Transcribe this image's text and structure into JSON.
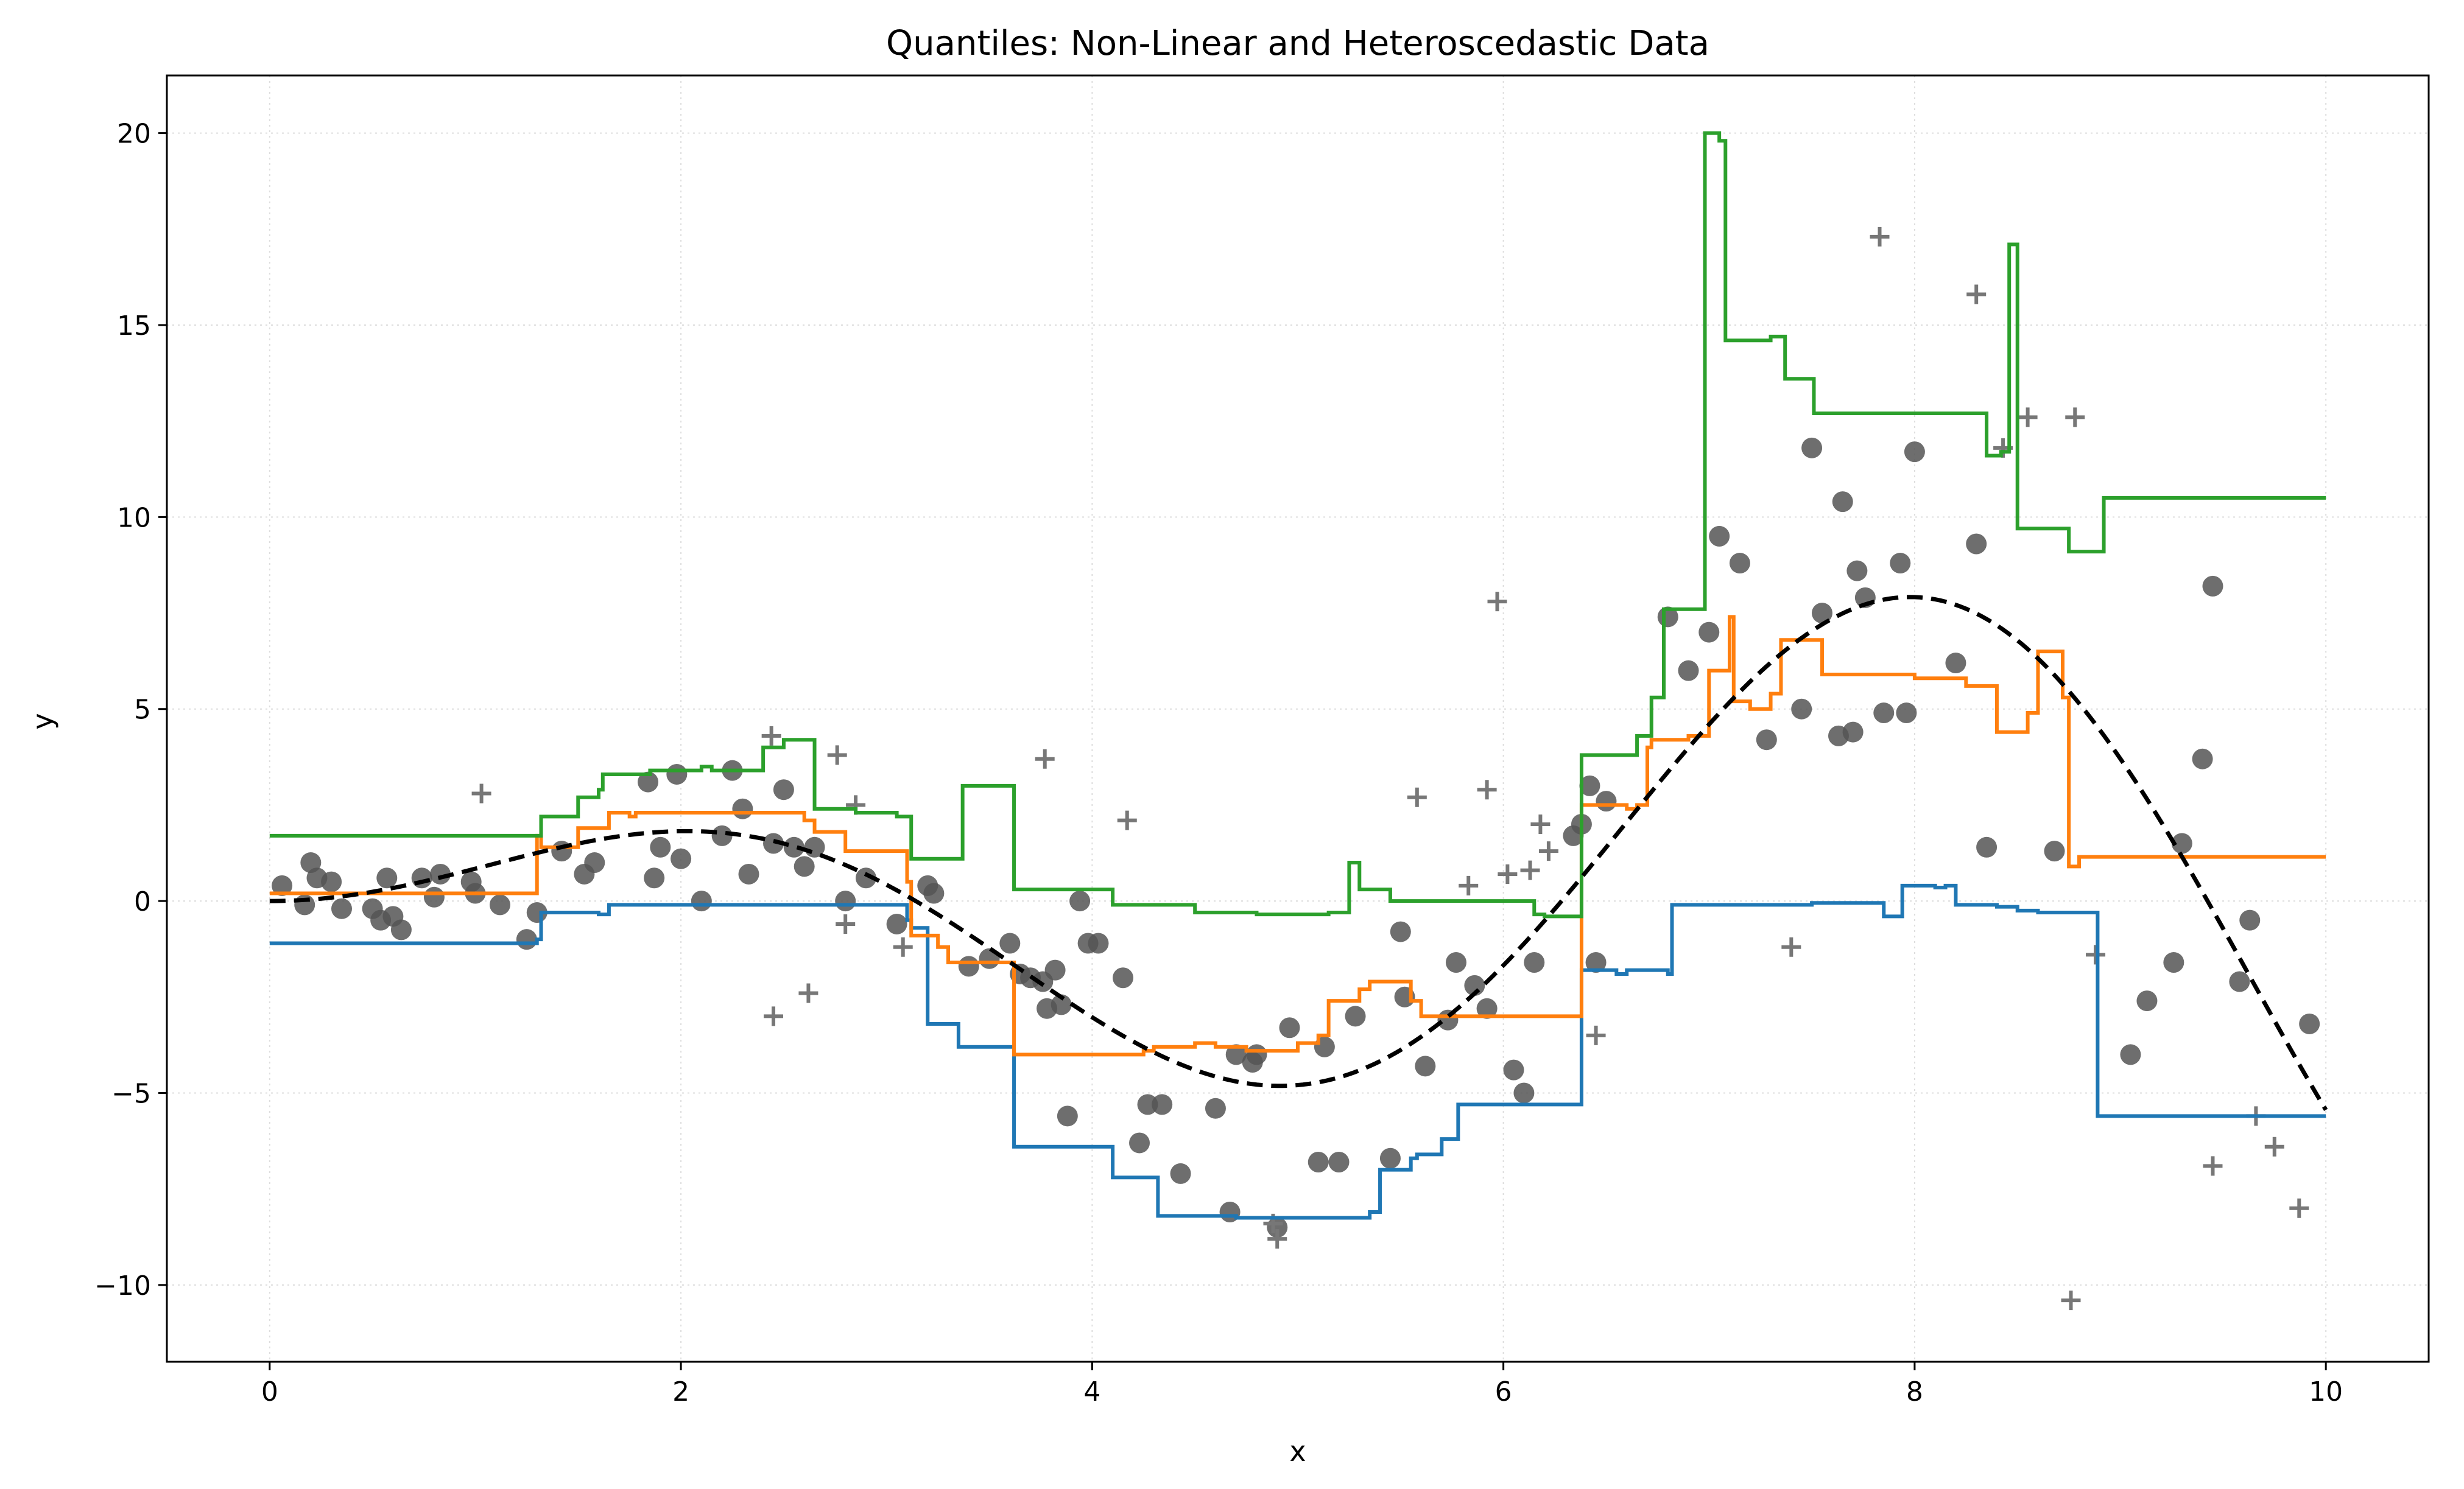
{
  "chart_data": {
    "type": "line",
    "title": "Quantiles: Non-Linear and Heteroscedastic Data",
    "xlabel": "x",
    "ylabel": "y",
    "xlim": [
      -0.5,
      10.5
    ],
    "ylim": [
      -12,
      21.5
    ],
    "xticks": [
      0,
      2,
      4,
      6,
      8,
      10
    ],
    "yticks": [
      -10,
      -5,
      0,
      5,
      10,
      15,
      20
    ],
    "xtick_labels": [
      "0",
      "2",
      "4",
      "6",
      "8",
      "10"
    ],
    "ytick_labels": [
      "−10",
      "−5",
      "0",
      "5",
      "10",
      "15",
      "20"
    ],
    "grid": true,
    "legend": "none",
    "colors": {
      "low": "#1f77b4",
      "median": "#ff7f0e",
      "high": "#2ca02c",
      "true_function": "#000000",
      "points": "#555555"
    },
    "true_function": {
      "style": "dashed",
      "formula": "x*sin(x)",
      "x_range": [
        0,
        10
      ]
    },
    "series": [
      {
        "style": "step",
        "color": "#1f77b4",
        "x": [
          0,
          1.3,
          1.32,
          1.6,
          1.65,
          3.1,
          3.12,
          3.2,
          3.35,
          3.6,
          3.62,
          4.1,
          4.3,
          4.32,
          4.7,
          4.8,
          5.35,
          5.4,
          5.55,
          5.58,
          5.7,
          5.78,
          5.9,
          6.36,
          6.38,
          6.55,
          6.6,
          6.8,
          6.82,
          7.5,
          7.8,
          7.85,
          7.92,
          7.94,
          8.1,
          8.1,
          8.15,
          8.2,
          8.3,
          8.4,
          8.5,
          8.6,
          8.88,
          8.89,
          10
        ],
        "y": [
          -1.1,
          -1.0,
          -0.3,
          -0.35,
          -0.1,
          -0.5,
          -0.7,
          -3.2,
          -3.8,
          -3.8,
          -6.4,
          -7.2,
          -7.2,
          -8.2,
          -8.25,
          -8.25,
          -8.1,
          -7.0,
          -6.7,
          -6.6,
          -6.2,
          -5.3,
          -5.3,
          -5.3,
          -1.8,
          -1.9,
          -1.8,
          -1.9,
          -0.1,
          -0.05,
          -0.05,
          -0.4,
          -0.4,
          0.4,
          0.35,
          0.35,
          0.4,
          -0.1,
          -0.1,
          -0.15,
          -0.25,
          -0.3,
          -0.3,
          -5.6,
          -5.6
        ]
      },
      {
        "style": "step",
        "color": "#ff7f0e",
        "x": [
          0,
          1.3,
          1.32,
          1.5,
          1.65,
          1.75,
          1.78,
          2.0,
          2.3,
          2.6,
          2.65,
          2.8,
          3.1,
          3.12,
          3.25,
          3.3,
          3.6,
          3.62,
          4.25,
          4.3,
          4.5,
          4.6,
          4.7,
          4.75,
          5.0,
          5.1,
          5.15,
          5.3,
          5.35,
          5.55,
          5.6,
          6.36,
          6.38,
          6.6,
          6.65,
          6.7,
          6.72,
          6.9,
          7.0,
          7.1,
          7.12,
          7.2,
          7.3,
          7.35,
          7.55,
          7.95,
          8.0,
          8.25,
          8.3,
          8.4,
          8.55,
          8.6,
          8.72,
          8.75,
          8.8,
          10
        ],
        "y": [
          0.2,
          1.7,
          1.4,
          1.9,
          2.3,
          2.2,
          2.3,
          2.3,
          2.3,
          2.1,
          1.8,
          1.3,
          0.5,
          -0.9,
          -1.2,
          -1.6,
          -1.6,
          -4.0,
          -3.9,
          -3.8,
          -3.7,
          -3.8,
          -3.8,
          -3.9,
          -3.7,
          -3.5,
          -2.6,
          -2.3,
          -2.1,
          -2.6,
          -3.0,
          -3.0,
          2.5,
          2.4,
          2.5,
          4.0,
          4.2,
          4.3,
          6.0,
          7.4,
          5.2,
          5.0,
          5.4,
          6.8,
          5.9,
          5.9,
          5.8,
          5.6,
          5.6,
          4.4,
          4.9,
          6.5,
          5.3,
          0.9,
          1.15,
          1.15
        ]
      },
      {
        "style": "step",
        "color": "#2ca02c",
        "x": [
          0,
          1.3,
          1.32,
          1.5,
          1.6,
          1.62,
          1.8,
          1.85,
          2.1,
          2.15,
          2.4,
          2.5,
          2.6,
          2.65,
          2.85,
          3.05,
          3.1,
          3.12,
          3.35,
          3.37,
          3.6,
          3.62,
          3.9,
          4.1,
          4.5,
          4.58,
          4.8,
          5.0,
          5.15,
          5.25,
          5.3,
          5.35,
          5.45,
          6.15,
          6.2,
          6.36,
          6.38,
          6.6,
          6.65,
          6.72,
          6.78,
          6.9,
          6.98,
          7.05,
          7.08,
          7.28,
          7.3,
          7.37,
          7.49,
          7.51,
          7.55,
          8.3,
          8.35,
          8.42,
          8.46,
          8.5,
          8.6,
          8.75,
          8.9,
          8.92,
          10
        ],
        "y": [
          1.7,
          1.7,
          2.2,
          2.7,
          2.9,
          3.3,
          3.3,
          3.4,
          3.5,
          3.4,
          4.0,
          4.2,
          4.2,
          2.4,
          2.3,
          2.2,
          2.2,
          1.1,
          1.1,
          3.0,
          3.0,
          0.3,
          0.3,
          -0.1,
          -0.3,
          -0.3,
          -0.35,
          -0.35,
          -0.3,
          1.0,
          0.3,
          0.3,
          0.0,
          -0.35,
          -0.4,
          -0.4,
          3.8,
          3.8,
          4.3,
          5.3,
          7.6,
          7.6,
          20.0,
          19.8,
          14.6,
          14.6,
          14.7,
          13.6,
          13.6,
          12.7,
          12.7,
          12.7,
          11.6,
          11.7,
          17.1,
          9.7,
          9.7,
          9.1,
          9.1,
          10.5,
          10.5
        ]
      }
    ],
    "points": [
      [
        0.06,
        0.4
      ],
      [
        0.17,
        -0.1
      ],
      [
        0.2,
        1.0
      ],
      [
        0.23,
        0.6
      ],
      [
        0.3,
        0.5
      ],
      [
        0.35,
        -0.2
      ],
      [
        0.5,
        -0.2
      ],
      [
        0.54,
        -0.5
      ],
      [
        0.57,
        0.6
      ],
      [
        0.6,
        -0.4
      ],
      [
        0.64,
        -0.75
      ],
      [
        0.74,
        0.6
      ],
      [
        0.8,
        0.1
      ],
      [
        0.83,
        0.7
      ],
      [
        0.98,
        0.5
      ],
      [
        1.0,
        0.2
      ],
      [
        1.12,
        -0.1
      ],
      [
        1.25,
        -1.0
      ],
      [
        1.3,
        -0.3
      ],
      [
        1.42,
        1.3
      ],
      [
        1.53,
        0.7
      ],
      [
        1.58,
        1.0
      ],
      [
        1.84,
        3.1
      ],
      [
        1.87,
        0.6
      ],
      [
        1.9,
        1.4
      ],
      [
        1.98,
        3.3
      ],
      [
        2.0,
        1.1
      ],
      [
        2.1,
        0.0
      ],
      [
        2.2,
        1.7
      ],
      [
        2.25,
        3.4
      ],
      [
        2.3,
        2.4
      ],
      [
        2.33,
        0.7
      ],
      [
        2.45,
        1.5
      ],
      [
        2.5,
        2.9
      ],
      [
        2.55,
        1.4
      ],
      [
        2.6,
        0.9
      ],
      [
        2.65,
        1.4
      ],
      [
        2.8,
        0.0
      ],
      [
        2.9,
        0.6
      ],
      [
        3.05,
        -0.6
      ],
      [
        3.2,
        0.4
      ],
      [
        3.23,
        0.2
      ],
      [
        3.4,
        -1.7
      ],
      [
        3.5,
        -1.5
      ],
      [
        3.6,
        -1.1
      ],
      [
        3.65,
        -1.9
      ],
      [
        3.7,
        -2.0
      ],
      [
        3.76,
        -2.1
      ],
      [
        3.78,
        -2.8
      ],
      [
        3.82,
        -1.8
      ],
      [
        3.85,
        -2.7
      ],
      [
        3.88,
        -5.6
      ],
      [
        3.94,
        0.0
      ],
      [
        3.98,
        -1.1
      ],
      [
        4.03,
        -1.1
      ],
      [
        4.15,
        -2.0
      ],
      [
        4.23,
        -6.3
      ],
      [
        4.27,
        -5.3
      ],
      [
        4.34,
        -5.3
      ],
      [
        4.43,
        -7.1
      ],
      [
        4.6,
        -5.4
      ],
      [
        4.67,
        -8.1
      ],
      [
        4.7,
        -4.0
      ],
      [
        4.78,
        -4.2
      ],
      [
        4.8,
        -4.0
      ],
      [
        4.9,
        -8.5
      ],
      [
        4.96,
        -3.3
      ],
      [
        5.1,
        -6.8
      ],
      [
        5.13,
        -3.8
      ],
      [
        5.2,
        -6.8
      ],
      [
        5.28,
        -3.0
      ],
      [
        5.45,
        -6.7
      ],
      [
        5.5,
        -0.8
      ],
      [
        5.52,
        -2.5
      ],
      [
        5.62,
        -4.3
      ],
      [
        5.73,
        -3.1
      ],
      [
        5.77,
        -1.6
      ],
      [
        5.86,
        -2.2
      ],
      [
        5.92,
        -2.8
      ],
      [
        6.05,
        -4.4
      ],
      [
        6.1,
        -5.0
      ],
      [
        6.15,
        -1.6
      ],
      [
        6.34,
        1.7
      ],
      [
        6.38,
        2.0
      ],
      [
        6.42,
        3.0
      ],
      [
        6.45,
        -1.6
      ],
      [
        6.5,
        2.6
      ],
      [
        6.8,
        7.4
      ],
      [
        6.9,
        6.0
      ],
      [
        7.0,
        7.0
      ],
      [
        7.05,
        9.5
      ],
      [
        7.15,
        8.8
      ],
      [
        7.28,
        4.2
      ],
      [
        7.45,
        5.0
      ],
      [
        7.5,
        11.8
      ],
      [
        7.55,
        7.5
      ],
      [
        7.63,
        4.3
      ],
      [
        7.65,
        10.4
      ],
      [
        7.7,
        4.4
      ],
      [
        7.72,
        8.6
      ],
      [
        7.76,
        7.9
      ],
      [
        7.85,
        4.9
      ],
      [
        7.93,
        8.8
      ],
      [
        7.96,
        4.9
      ],
      [
        8.0,
        11.7
      ],
      [
        8.2,
        6.2
      ],
      [
        8.3,
        9.3
      ],
      [
        8.35,
        1.4
      ],
      [
        8.68,
        1.3
      ],
      [
        9.05,
        -4.0
      ],
      [
        9.13,
        -2.6
      ],
      [
        9.26,
        -1.6
      ],
      [
        9.3,
        1.5
      ],
      [
        9.4,
        3.7
      ],
      [
        9.45,
        8.2
      ],
      [
        9.58,
        -2.1
      ],
      [
        9.63,
        -0.5
      ],
      [
        9.92,
        -3.2
      ]
    ],
    "outliers": [
      [
        1.03,
        2.8
      ],
      [
        2.44,
        4.3
      ],
      [
        2.45,
        -3.0
      ],
      [
        2.62,
        -2.4
      ],
      [
        2.76,
        3.8
      ],
      [
        2.8,
        -0.6
      ],
      [
        2.85,
        2.5
      ],
      [
        3.08,
        -1.2
      ],
      [
        3.77,
        3.7
      ],
      [
        4.17,
        2.1
      ],
      [
        4.88,
        -8.4
      ],
      [
        4.9,
        -8.8
      ],
      [
        5.58,
        2.7
      ],
      [
        5.83,
        0.4
      ],
      [
        5.92,
        2.9
      ],
      [
        5.97,
        7.8
      ],
      [
        6.02,
        0.7
      ],
      [
        6.13,
        0.8
      ],
      [
        6.18,
        2.0
      ],
      [
        6.22,
        1.3
      ],
      [
        6.45,
        -3.5
      ],
      [
        7.4,
        -1.2
      ],
      [
        7.83,
        17.3
      ],
      [
        8.3,
        15.8
      ],
      [
        8.43,
        11.8
      ],
      [
        8.55,
        12.6
      ],
      [
        8.78,
        12.6
      ],
      [
        8.76,
        -10.4
      ],
      [
        8.88,
        -1.4
      ],
      [
        9.45,
        -6.9
      ],
      [
        9.66,
        -5.6
      ],
      [
        9.75,
        -6.4
      ],
      [
        9.87,
        -8.0
      ]
    ]
  }
}
